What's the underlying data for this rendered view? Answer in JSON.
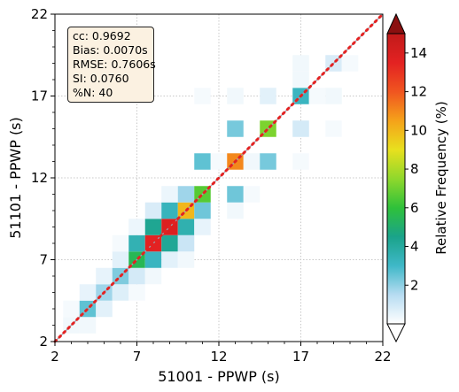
{
  "chart_data": {
    "type": "heatmap",
    "xlabel": "51001 - PPWP (s)",
    "ylabel": "51101 - PPWP (s)",
    "xlim": [
      2,
      22
    ],
    "ylim": [
      2,
      22
    ],
    "x_ticks": [
      "2",
      "7",
      "12",
      "17",
      "22"
    ],
    "y_ticks": [
      "2",
      "7",
      "12",
      "17",
      "22"
    ],
    "grid": true,
    "stats": [
      "cc: 0.9692",
      "Bias: 0.0070s",
      "RMSE: 0.7606s",
      "SI: 0.0760",
      "%N: 40"
    ],
    "colorbar": {
      "label": "Relative Frequency (%)",
      "ticks": [
        "2",
        "4",
        "6",
        "8",
        "10",
        "12",
        "14"
      ],
      "range": [
        0,
        15
      ],
      "extend": "both",
      "colors": [
        "#ffffff",
        "#b7dcf2",
        "#3fb8c8",
        "#1aa38a",
        "#2fc13a",
        "#8fd82c",
        "#e8e01e",
        "#f5a21a",
        "#f05520",
        "#e32222",
        "#c11a1a"
      ]
    },
    "reference_lines": [
      {
        "name": "one-to-one",
        "color": "#9aa5b1",
        "style": "solid"
      },
      {
        "name": "fit",
        "color": "#e32222",
        "style": "dotted"
      }
    ],
    "cells": [
      [
        3,
        3,
        0.3
      ],
      [
        3,
        4,
        0.2
      ],
      [
        4,
        3,
        0.3
      ],
      [
        4,
        4,
        2.6
      ],
      [
        4,
        5,
        0.5
      ],
      [
        5,
        4,
        0.6
      ],
      [
        5,
        5,
        1.8
      ],
      [
        5,
        6,
        0.5
      ],
      [
        6,
        5,
        0.7
      ],
      [
        6,
        6,
        2.2
      ],
      [
        6,
        7,
        0.6
      ],
      [
        6,
        8,
        0.2
      ],
      [
        7,
        5,
        0.2
      ],
      [
        7,
        6,
        0.9
      ],
      [
        7,
        7,
        5.5
      ],
      [
        7,
        8,
        3.5
      ],
      [
        7,
        9,
        0.4
      ],
      [
        8,
        6,
        0.3
      ],
      [
        8,
        7,
        3.2
      ],
      [
        8,
        8,
        13.5
      ],
      [
        8,
        9,
        4.3
      ],
      [
        8,
        10,
        0.8
      ],
      [
        9,
        7,
        0.6
      ],
      [
        9,
        8,
        4.2
      ],
      [
        9,
        9,
        13.8
      ],
      [
        9,
        10,
        3.3
      ],
      [
        9,
        11,
        0.4
      ],
      [
        10,
        7,
        0.3
      ],
      [
        10,
        8,
        1.1
      ],
      [
        10,
        9,
        3.6
      ],
      [
        10,
        10,
        10.0
      ],
      [
        10,
        11,
        1.8
      ],
      [
        11,
        9,
        0.5
      ],
      [
        11,
        10,
        2.4
      ],
      [
        11,
        11,
        6.6
      ],
      [
        11,
        13,
        2.6
      ],
      [
        11,
        17,
        0.2
      ],
      [
        12,
        13,
        0.2
      ],
      [
        13,
        10,
        0.3
      ],
      [
        13,
        11,
        2.4
      ],
      [
        13,
        13,
        11.0
      ],
      [
        13,
        15,
        2.3
      ],
      [
        13,
        17,
        0.3
      ],
      [
        14,
        11,
        0.2
      ],
      [
        14,
        13,
        0.3
      ],
      [
        15,
        13,
        2.3
      ],
      [
        15,
        15,
        7.2
      ],
      [
        15,
        17,
        0.6
      ],
      [
        17,
        13,
        0.2
      ],
      [
        17,
        15,
        0.9
      ],
      [
        17,
        17,
        3.2
      ],
      [
        17,
        18,
        0.3
      ],
      [
        17,
        19,
        0.3
      ],
      [
        18,
        17,
        0.2
      ],
      [
        19,
        15,
        0.2
      ],
      [
        19,
        17,
        0.3
      ],
      [
        19,
        19,
        0.8
      ],
      [
        20,
        19,
        0.2
      ]
    ]
  }
}
